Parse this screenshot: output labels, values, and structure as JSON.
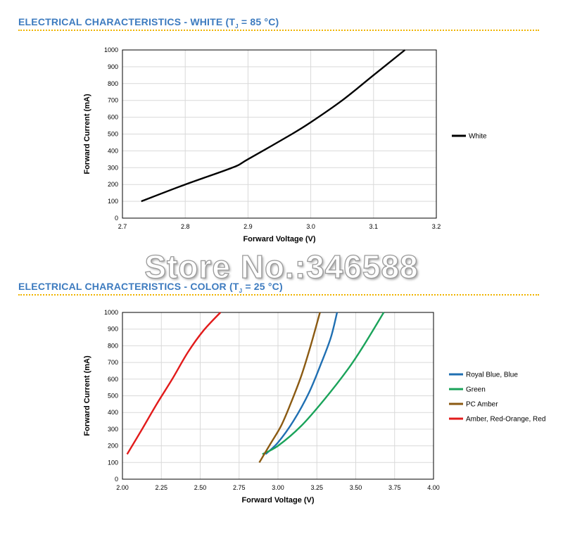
{
  "sections": [
    {
      "title_main": "ELECTRICAL CHARACTERISTICS - WHITE (T",
      "title_sub": "J",
      "title_rest": " = 85 °C)"
    },
    {
      "title_main": "ELECTRICAL CHARACTERISTICS - COLOR (T",
      "title_sub": "J",
      "title_rest": " = 25 °C)"
    }
  ],
  "colors": {
    "title": "#3d7bbf",
    "rule": "#f0b400"
  },
  "watermark": "Store No.:346588",
  "chart_data": [
    {
      "type": "line",
      "xlabel": "Forward Voltage (V)",
      "ylabel": "Forward Current (mA)",
      "xlim": [
        2.7,
        3.2
      ],
      "ylim": [
        0,
        1000
      ],
      "xticks": [
        "2.7",
        "2.8",
        "2.9",
        "3.0",
        "3.1",
        "3.2"
      ],
      "yticks": [
        "0",
        "100",
        "200",
        "300",
        "400",
        "500",
        "600",
        "700",
        "800",
        "900",
        "1000"
      ],
      "grid": true,
      "legend_position": "right",
      "series": [
        {
          "name": "White",
          "color": "#000000",
          "points": [
            [
              2.73,
              100
            ],
            [
              2.8,
              200
            ],
            [
              2.875,
              300
            ],
            [
              2.9,
              350
            ],
            [
              2.97,
              500
            ],
            [
              3.0,
              570
            ],
            [
              3.05,
              700
            ],
            [
              3.1,
              850
            ],
            [
              3.15,
              1000
            ]
          ]
        }
      ]
    },
    {
      "type": "line",
      "xlabel": "Forward Voltage (V)",
      "ylabel": "Forward Current (mA)",
      "xlim": [
        2.0,
        4.0
      ],
      "ylim": [
        0,
        1000
      ],
      "xticks": [
        "2.00",
        "2.25",
        "2.50",
        "2.75",
        "3.00",
        "3.25",
        "3.50",
        "3.75",
        "4.00"
      ],
      "yticks": [
        "0",
        "100",
        "200",
        "300",
        "400",
        "500",
        "600",
        "700",
        "800",
        "900",
        "1000"
      ],
      "grid": true,
      "legend_position": "right",
      "series": [
        {
          "name": "Royal Blue, Blue",
          "color": "#1f6fb2",
          "points": [
            [
              2.92,
              150
            ],
            [
              3.0,
              220
            ],
            [
              3.1,
              350
            ],
            [
              3.2,
              520
            ],
            [
              3.28,
              700
            ],
            [
              3.34,
              850
            ],
            [
              3.38,
              1000
            ]
          ]
        },
        {
          "name": "Green",
          "color": "#1aa35a",
          "points": [
            [
              2.9,
              150
            ],
            [
              3.0,
              200
            ],
            [
              3.15,
              320
            ],
            [
              3.3,
              480
            ],
            [
              3.45,
              660
            ],
            [
              3.55,
              800
            ],
            [
              3.68,
              1000
            ]
          ]
        },
        {
          "name": "PC Amber",
          "color": "#8b5a12",
          "points": [
            [
              2.88,
              100
            ],
            [
              2.95,
              210
            ],
            [
              3.02,
              320
            ],
            [
              3.08,
              450
            ],
            [
              3.15,
              620
            ],
            [
              3.21,
              800
            ],
            [
              3.27,
              1000
            ]
          ]
        },
        {
          "name": "Amber, Red-Orange, Red",
          "color": "#e21b1b",
          "points": [
            [
              2.03,
              150
            ],
            [
              2.12,
              290
            ],
            [
              2.22,
              450
            ],
            [
              2.32,
              600
            ],
            [
              2.42,
              760
            ],
            [
              2.52,
              890
            ],
            [
              2.63,
              1000
            ]
          ]
        }
      ]
    }
  ]
}
